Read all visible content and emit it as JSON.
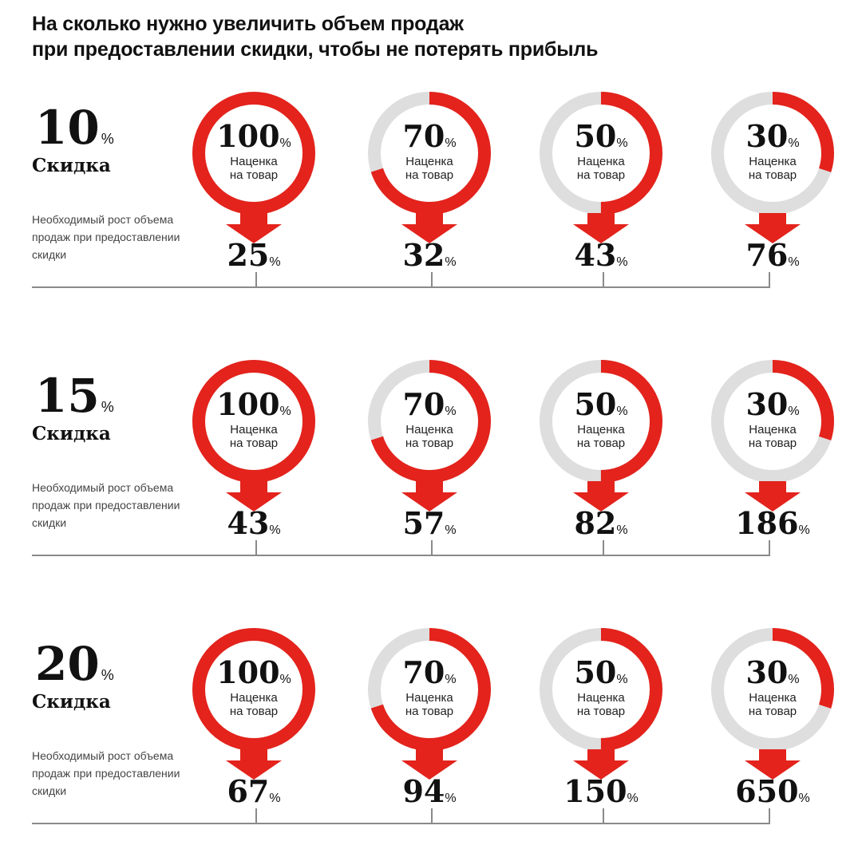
{
  "title": {
    "line1": "На сколько нужно увеличить объем продаж",
    "line2": "при предоставлении скидки, чтобы не потерять прибыль"
  },
  "labels": {
    "discount": "Скидка",
    "percent": "%",
    "markup_line1": "Наценка",
    "markup_line2": "на товар",
    "growth": "Необходимый рост объема продаж при предоставлении скидки"
  },
  "colors": {
    "accent": "#e3231c",
    "ring_track": "#dedede",
    "text": "#111111"
  },
  "chart_data": {
    "type": "table",
    "markups": [
      "100",
      "70",
      "50",
      "30"
    ],
    "markup_fractions": [
      1.0,
      0.7,
      0.5,
      0.3
    ],
    "discounts": [
      "10",
      "15",
      "20"
    ],
    "growth": [
      [
        "25",
        "32",
        "43",
        "76"
      ],
      [
        "43",
        "57",
        "82",
        "186"
      ],
      [
        "67",
        "94",
        "150",
        "650"
      ]
    ]
  }
}
